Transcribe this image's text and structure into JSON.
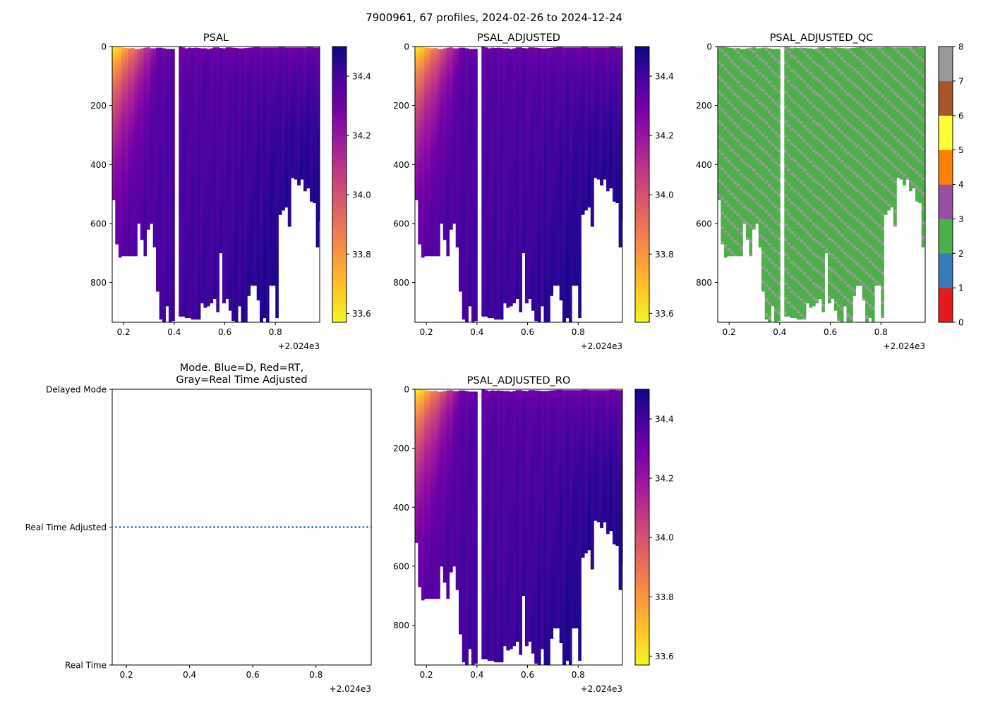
{
  "suptitle": "7900961, 67 profiles, 2024-02-26 to 2024-12-24",
  "colors": {
    "profile_dots": "#1f77b4",
    "colormap": [
      "#f0f921",
      "#fdca26",
      "#fb9f3a",
      "#ed7953",
      "#d8576b",
      "#bd3786",
      "#9c179e",
      "#7201a8",
      "#46039f",
      "#0d0887"
    ],
    "qc_colors": [
      "#e41a1c",
      "#377eb8",
      "#4daf4a",
      "#984ea3",
      "#ff7f00",
      "#ffff33",
      "#a65628",
      "#f781bf",
      "#999999"
    ]
  },
  "chart_data": [
    {
      "id": "psal",
      "type": "heatmap",
      "title": "PSAL",
      "xlim": [
        0.155,
        0.975
      ],
      "ylim": [
        935,
        0
      ],
      "xticks": [
        "0.2",
        "0.4",
        "0.6",
        "0.8"
      ],
      "xtick_values": [
        0.2,
        0.4,
        0.6,
        0.8
      ],
      "x_offset_label": "+2.024e3",
      "yticks": [
        "0",
        "200",
        "400",
        "600",
        "800"
      ],
      "ytick_values": [
        0,
        200,
        400,
        600,
        800
      ],
      "colorbar": {
        "range": [
          33.57,
          34.5
        ],
        "ticks": [
          "33.6",
          "33.8",
          "34.0",
          "34.2",
          "34.4"
        ],
        "tick_values": [
          33.6,
          33.8,
          34.0,
          34.2,
          34.4
        ]
      }
    },
    {
      "id": "psal_adjusted",
      "type": "heatmap",
      "title": "PSAL_ADJUSTED",
      "xlim": [
        0.155,
        0.975
      ],
      "ylim": [
        935,
        0
      ],
      "xticks": [
        "0.2",
        "0.4",
        "0.6",
        "0.8"
      ],
      "xtick_values": [
        0.2,
        0.4,
        0.6,
        0.8
      ],
      "x_offset_label": "+2.024e3",
      "yticks": [
        "0",
        "200",
        "400",
        "600",
        "800"
      ],
      "ytick_values": [
        0,
        200,
        400,
        600,
        800
      ],
      "colorbar": {
        "range": [
          33.57,
          34.5
        ],
        "ticks": [
          "33.6",
          "33.8",
          "34.0",
          "34.2",
          "34.4"
        ],
        "tick_values": [
          33.6,
          33.8,
          34.0,
          34.2,
          34.4
        ]
      }
    },
    {
      "id": "psal_adjusted_qc",
      "type": "heatmap",
      "title": "PSAL_ADJUSTED_QC",
      "xlim": [
        0.155,
        0.975
      ],
      "ylim": [
        935,
        0
      ],
      "xticks": [
        "0.2",
        "0.4",
        "0.6",
        "0.8"
      ],
      "xtick_values": [
        0.2,
        0.4,
        0.6,
        0.8
      ],
      "x_offset_label": "+2.024e3",
      "yticks": [
        "0",
        "200",
        "400",
        "600",
        "800"
      ],
      "ytick_values": [
        0,
        200,
        400,
        600,
        800
      ],
      "colorbar": {
        "range": [
          0,
          8
        ],
        "ticks": [
          "0",
          "1",
          "2",
          "3",
          "4",
          "5",
          "6",
          "7",
          "8"
        ],
        "tick_values": [
          0,
          1,
          2,
          3,
          4,
          5,
          6,
          7,
          8
        ]
      },
      "dominant_flag": 2,
      "secondary_flag": 8
    },
    {
      "id": "mode",
      "type": "scatter",
      "title": "Mode. Blue=D, Red=RT,",
      "title2": "Gray=Real Time Adjusted",
      "xlim": [
        0.155,
        0.975
      ],
      "ylim": [
        0,
        2
      ],
      "xticks": [
        "0.2",
        "0.4",
        "0.6",
        "0.8"
      ],
      "xtick_values": [
        0.2,
        0.4,
        0.6,
        0.8
      ],
      "x_offset_label": "+2.024e3",
      "yticks": [
        "Real Time",
        "Real Time Adjusted",
        "Delayed Mode"
      ],
      "ytick_values": [
        0,
        1,
        2
      ],
      "series": [
        {
          "name": "Real Time Adjusted",
          "y": 1,
          "count": 67
        }
      ]
    },
    {
      "id": "psal_adjusted_ro",
      "type": "heatmap",
      "title": "PSAL_ADJUSTED_RO",
      "xlim": [
        0.155,
        0.975
      ],
      "ylim": [
        935,
        0
      ],
      "xticks": [
        "0.2",
        "0.4",
        "0.6",
        "0.8"
      ],
      "xtick_values": [
        0.2,
        0.4,
        0.6,
        0.8
      ],
      "x_offset_label": "+2.024e3",
      "yticks": [
        "0",
        "200",
        "400",
        "600",
        "800"
      ],
      "ytick_values": [
        0,
        200,
        400,
        600,
        800
      ],
      "colorbar": {
        "range": [
          33.57,
          34.5
        ],
        "ticks": [
          "33.6",
          "33.8",
          "34.0",
          "34.2",
          "34.4"
        ],
        "tick_values": [
          33.6,
          33.8,
          34.0,
          34.2,
          34.4
        ]
      }
    }
  ],
  "profiles": {
    "count": 67,
    "times": [
      0.155,
      0.167,
      0.18,
      0.192,
      0.205,
      0.217,
      0.229,
      0.242,
      0.254,
      0.266,
      0.279,
      0.291,
      0.304,
      0.316,
      0.328,
      0.341,
      0.353,
      0.366,
      0.378,
      0.39,
      0.418,
      0.43,
      0.442,
      0.455,
      0.467,
      0.479,
      0.492,
      0.504,
      0.516,
      0.529,
      0.541,
      0.553,
      0.566,
      0.578,
      0.59,
      0.603,
      0.615,
      0.627,
      0.64,
      0.652,
      0.664,
      0.677,
      0.689,
      0.701,
      0.714,
      0.726,
      0.738,
      0.751,
      0.763,
      0.775,
      0.788,
      0.8,
      0.812,
      0.825,
      0.837,
      0.849,
      0.862,
      0.874,
      0.886,
      0.899,
      0.911,
      0.923,
      0.936,
      0.948,
      0.96,
      0.972,
      0.975
    ],
    "max_depth": [
      520,
      670,
      715,
      710,
      710,
      710,
      710,
      710,
      600,
      655,
      710,
      620,
      600,
      680,
      830,
      925,
      935,
      880,
      935,
      930,
      915,
      915,
      920,
      920,
      925,
      925,
      925,
      870,
      885,
      880,
      870,
      855,
      900,
      700,
      870,
      855,
      895,
      930,
      935,
      880,
      935,
      935,
      845,
      810,
      810,
      860,
      935,
      920,
      935,
      810,
      810,
      920,
      570,
      555,
      545,
      610,
      445,
      450,
      470,
      450,
      490,
      480,
      525,
      530,
      680,
      590,
      680
    ],
    "surface_depth": [
      0,
      0,
      2,
      4,
      5,
      6,
      5,
      8,
      8,
      6,
      4,
      3,
      6,
      6,
      4,
      4,
      6,
      8,
      8,
      8,
      0,
      3,
      6,
      4,
      5,
      4,
      5,
      6,
      6,
      8,
      6,
      3,
      3,
      5,
      6,
      3,
      3,
      4,
      5,
      6,
      6,
      5,
      4,
      3,
      2,
      2,
      3,
      3,
      3,
      3,
      3,
      3,
      2,
      2,
      3,
      3,
      3,
      3,
      3,
      3,
      3,
      2,
      2,
      3,
      3,
      3,
      3
    ],
    "gap_between_index": [
      19,
      20
    ]
  }
}
